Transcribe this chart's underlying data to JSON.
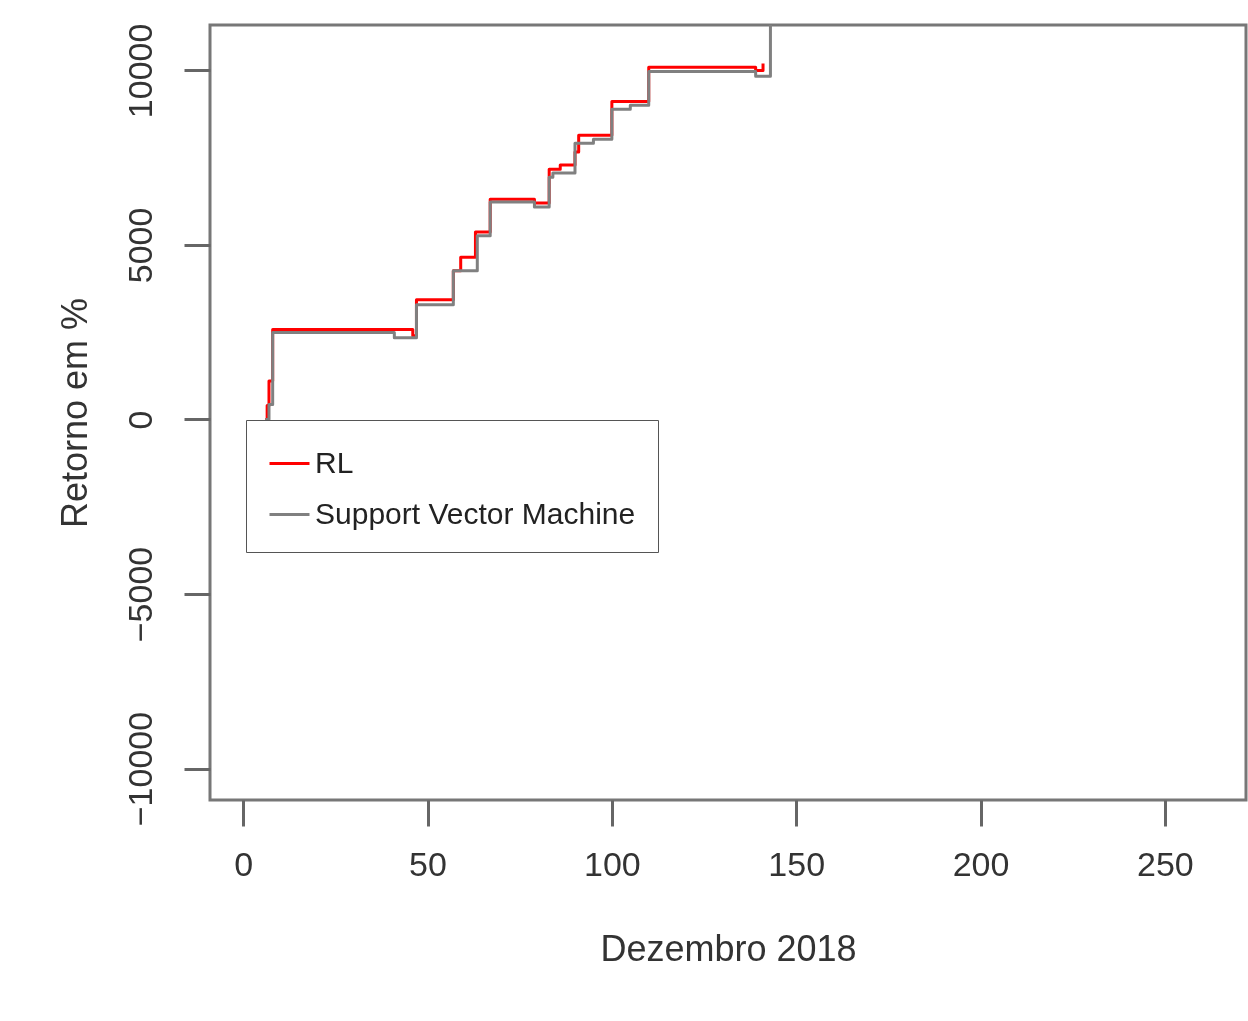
{
  "chart_data": {
    "type": "step",
    "xlabel": "Dezembro 2018",
    "ylabel": "Retorno em %",
    "xlim": [
      -9,
      272
    ],
    "ylim": [
      -10900,
      11300
    ],
    "xticks": [
      0,
      50,
      100,
      150,
      200,
      250
    ],
    "yticks": [
      -10000,
      -5000,
      0,
      5000,
      10000
    ],
    "grid": false,
    "legend": "left",
    "line_style": "solid",
    "marker": "none",
    "series": [
      {
        "name": "RL",
        "color": "#ff0000",
        "x": [
          6,
          6.5,
          7,
          8,
          46,
          47,
          57,
          59,
          63,
          67,
          79,
          83,
          86,
          90,
          91,
          99,
          100,
          110,
          139,
          141
        ],
        "values": [
          0,
          400,
          1100,
          2580,
          2400,
          3430,
          4260,
          4650,
          5370,
          6310,
          6200,
          7170,
          7290,
          7660,
          8140,
          8140,
          9110,
          10090,
          10000,
          10200
        ]
      },
      {
        "name": "Support Vector Machine",
        "color": "#808080",
        "x": [
          6,
          7,
          8,
          41,
          47,
          57,
          63.5,
          67,
          79,
          83,
          84,
          90,
          95,
          100,
          105,
          110,
          139,
          143,
          143.01
        ],
        "values": [
          0,
          430,
          2490,
          2340,
          3290,
          4260,
          5260,
          6230,
          6090,
          6940,
          7060,
          7910,
          8030,
          8890,
          9000,
          9970,
          9830,
          9830,
          11300
        ]
      }
    ]
  }
}
